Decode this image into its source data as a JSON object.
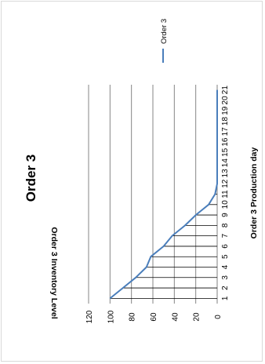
{
  "chart_data": {
    "type": "line",
    "title": "Order 3",
    "xlabel": "Order 3 Production day",
    "ylabel": "Order 3 Inventory Level",
    "categories": [
      "1",
      "2",
      "3",
      "4",
      "5",
      "6",
      "7",
      "8",
      "9",
      "10",
      "11",
      "12",
      "13",
      "14",
      "15",
      "16",
      "17",
      "18",
      "19",
      "20",
      "21"
    ],
    "series": [
      {
        "name": "Order 3",
        "values": [
          100,
          88,
          76,
          66,
          62,
          50,
          42,
          30,
          20,
          8,
          2,
          0,
          0,
          0,
          0,
          0,
          0,
          0,
          0,
          0,
          0
        ]
      }
    ],
    "ylim": [
      0,
      120
    ],
    "yticks": [
      "0",
      "20",
      "40",
      "60",
      "80",
      "100",
      "120"
    ],
    "grid": true,
    "drop_lines": true,
    "legend_position": "right",
    "rotated": "90deg-clockwise",
    "colors": {
      "series": "#4a7ebb",
      "grid": "#808080",
      "drop_line": "#000000",
      "border": "#d9d9d9"
    }
  }
}
